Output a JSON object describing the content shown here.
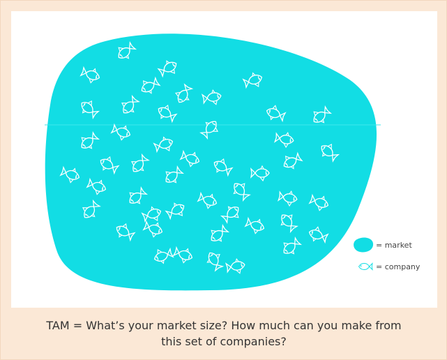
{
  "legend": {
    "market": "= market",
    "company": "= company"
  },
  "caption": "TAM = What’s your market size? How much can you make from this set of companies?"
}
